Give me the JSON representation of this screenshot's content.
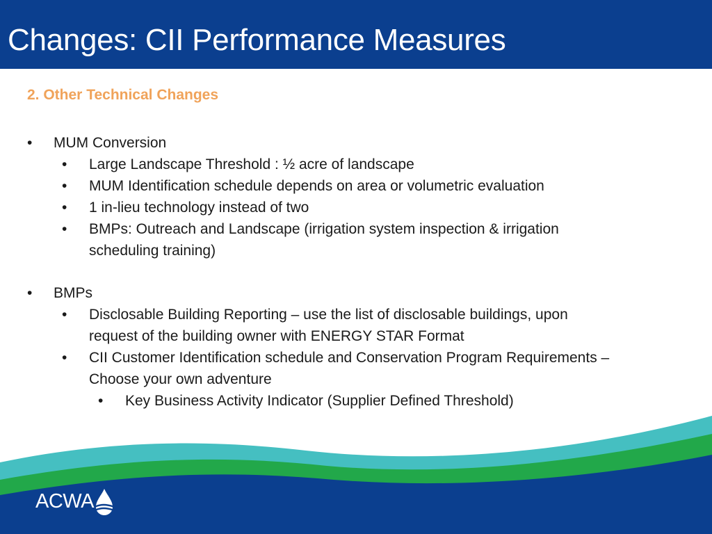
{
  "slide": {
    "title": "Changes: CII Performance Measures",
    "subtitle": "2. Other Technical Changes"
  },
  "sections": [
    {
      "heading": "MUM Conversion",
      "items": [
        "Large Landscape Threshold : ½ acre of landscape",
        "MUM Identification schedule depends on area or volumetric evaluation",
        "1 in-lieu technology instead of two",
        "BMPs: Outreach and Landscape (irrigation system inspection & irrigation",
        "scheduling training)"
      ]
    },
    {
      "heading": "BMPs",
      "items": [
        "Disclosable Building Reporting – use the list of disclosable buildings, upon",
        "request of the building owner with ENERGY STAR Format",
        "CII Customer Identification schedule and Conservation Program Requirements –",
        "Choose your own adventure"
      ],
      "subitems": [
        "Key Business Activity Indicator (Supplier Defined Threshold)"
      ]
    }
  ],
  "bullet_glyph": "•",
  "logo": {
    "text": "ACWA",
    "icon": "water-drop-icon"
  },
  "colors": {
    "title_bar": "#0b3f8f",
    "subtitle": "#f0a35a",
    "wave_teal": "#45bfc1",
    "wave_green": "#22a84a",
    "wave_navy": "#0b3f8f"
  }
}
